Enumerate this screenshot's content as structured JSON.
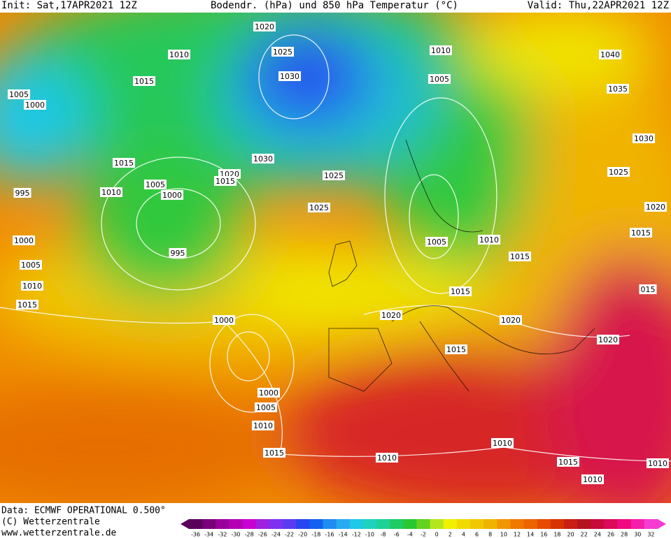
{
  "header": {
    "init": "Init: Sat,17APR2021 12Z",
    "title": "Bodendr. (hPa) und 850 hPa Temperatur (°C)",
    "valid": "Valid: Thu,22APR2021 12Z"
  },
  "isobar_labels": [
    "1020",
    "1025",
    "1010",
    "1010",
    "1040",
    "1030",
    "1015",
    "1005",
    "1035",
    "1005",
    "1000",
    "1030",
    "1015",
    "1030",
    "1020",
    "1015",
    "1025",
    "1025",
    "1005",
    "1000",
    "1010",
    "995",
    "1025",
    "1020",
    "1015",
    "1000",
    "1005",
    "1010",
    "995",
    "1015",
    "1005",
    "1010",
    "1015",
    "015",
    "1015",
    "1020",
    "1000",
    "1020",
    "1020",
    "1015",
    "1000",
    "1005",
    "1010",
    "1015",
    "1010",
    "1010",
    "1015",
    "1010",
    "1010"
  ],
  "footer": {
    "data": "Data: ECMWF OPERATIONAL 0.500°",
    "copyright": "(C) Wetterzentrale",
    "url": "www.wetterzentrale.de"
  },
  "scale": {
    "labels": [
      "-36",
      "-34",
      "-32",
      "-30",
      "-28",
      "-26",
      "-24",
      "-22",
      "-20",
      "-18",
      "-16",
      "-14",
      "-12",
      "-10",
      "-8",
      "-6",
      "-4",
      "-2",
      "0",
      "2",
      "4",
      "6",
      "8",
      "10",
      "12",
      "14",
      "16",
      "18",
      "20",
      "22",
      "24",
      "26",
      "28",
      "30",
      "32"
    ],
    "colors": [
      "#5a005a",
      "#78007a",
      "#9a009a",
      "#b400b4",
      "#c800d2",
      "#a020e0",
      "#8030f0",
      "#5a3cf0",
      "#2846f0",
      "#1460f0",
      "#1e8cf0",
      "#28aaf0",
      "#1ec8e6",
      "#1ed2be",
      "#1ed296",
      "#1ecc64",
      "#28c832",
      "#64d21e",
      "#b4e61e",
      "#f0f000",
      "#f0dc00",
      "#f0c800",
      "#f0b400",
      "#f09600",
      "#f07800",
      "#eb6400",
      "#e64b00",
      "#d73200",
      "#c81e14",
      "#b4141e",
      "#c80a3c",
      "#dc0a5a",
      "#f00a82",
      "#f51eaa",
      "#f53cd2"
    ]
  }
}
